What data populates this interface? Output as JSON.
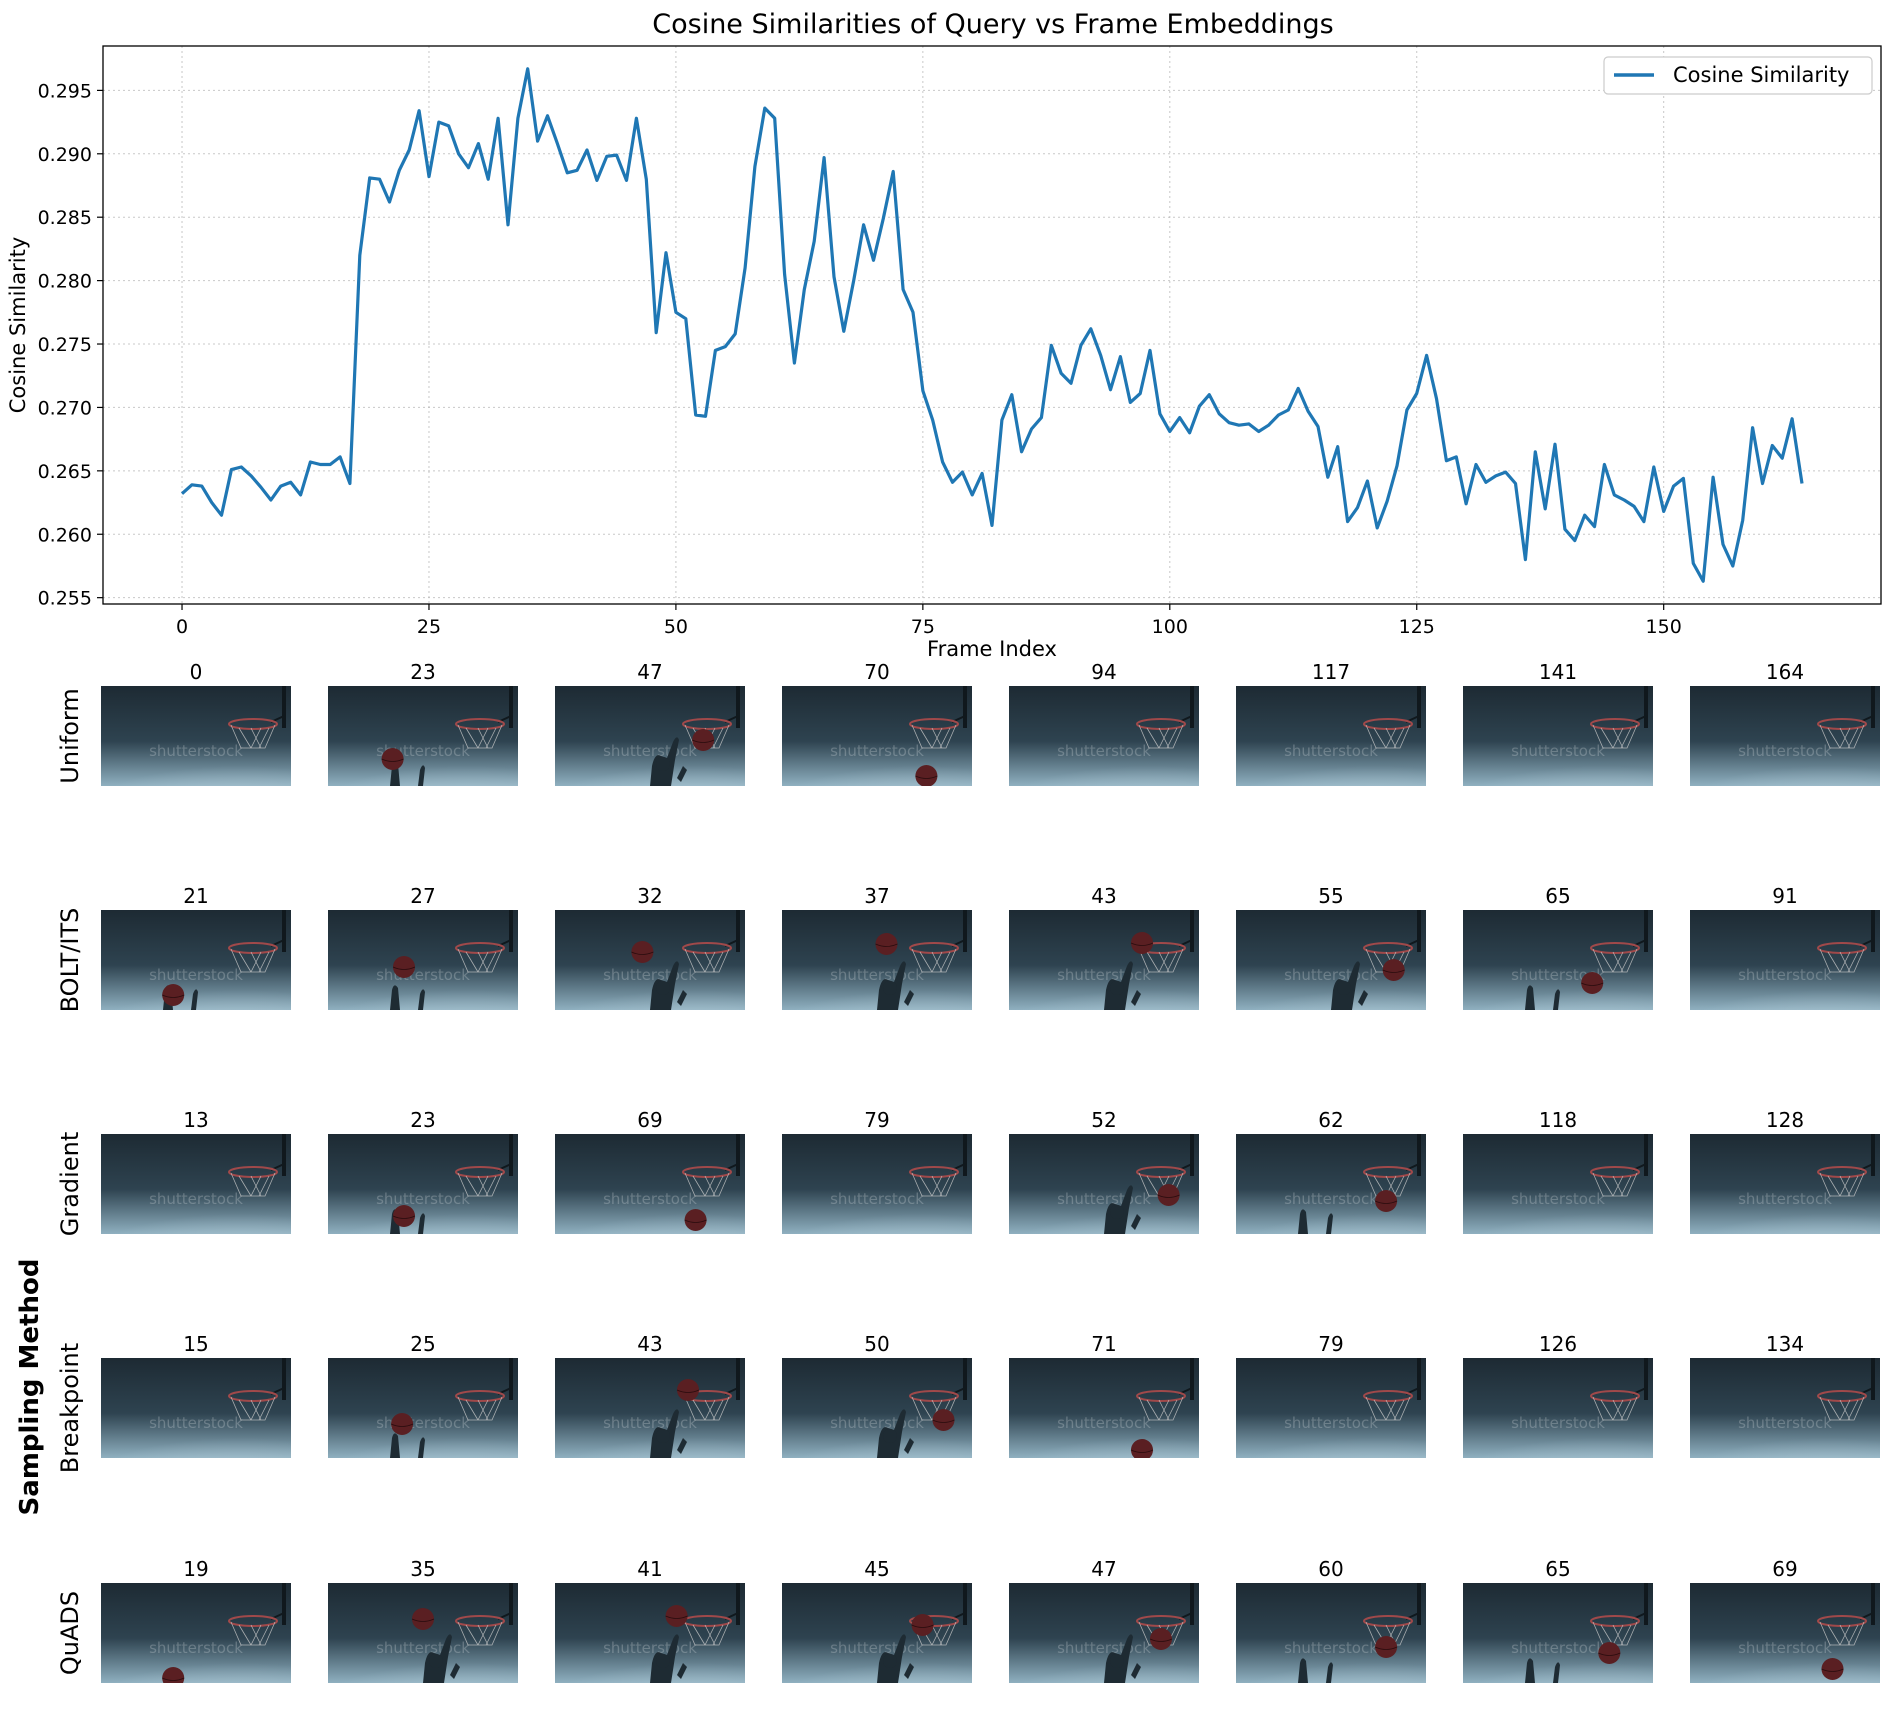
{
  "chart_data": {
    "type": "line",
    "title": "Cosine Similarities of Query vs Frame Embeddings",
    "xlabel": "Frame Index",
    "ylabel": "Cosine Similarity",
    "xlim": [
      -8,
      172
    ],
    "ylim": [
      0.2545,
      0.2985
    ],
    "xticks": [
      0,
      25,
      50,
      75,
      100,
      125,
      150
    ],
    "yticks": [
      0.255,
      0.26,
      0.265,
      0.27,
      0.275,
      0.28,
      0.285,
      0.29,
      0.295
    ],
    "ytick_labels": [
      "0.255",
      "0.260",
      "0.265",
      "0.270",
      "0.275",
      "0.280",
      "0.285",
      "0.290",
      "0.295"
    ],
    "grid": true,
    "legend_position": "top-right",
    "series": [
      {
        "name": "Cosine Similarity",
        "color": "#1f77b4",
        "x_start": 0,
        "values": [
          0.2632,
          0.2639,
          0.2638,
          0.2625,
          0.2615,
          0.2651,
          0.2653,
          0.2646,
          0.2637,
          0.2627,
          0.2638,
          0.2641,
          0.2631,
          0.2657,
          0.2655,
          0.2655,
          0.2661,
          0.264,
          0.282,
          0.2881,
          0.288,
          0.2862,
          0.2887,
          0.2903,
          0.2934,
          0.2882,
          0.2925,
          0.2922,
          0.29,
          0.2889,
          0.2908,
          0.288,
          0.2928,
          0.2844,
          0.2928,
          0.2967,
          0.291,
          0.293,
          0.2908,
          0.2885,
          0.2887,
          0.2903,
          0.2879,
          0.2898,
          0.2899,
          0.2879,
          0.2928,
          0.288,
          0.2759,
          0.2822,
          0.2775,
          0.277,
          0.2694,
          0.2693,
          0.2745,
          0.2748,
          0.2758,
          0.281,
          0.289,
          0.2936,
          0.2928,
          0.2805,
          0.2735,
          0.2793,
          0.2831,
          0.2897,
          0.2803,
          0.276,
          0.28,
          0.2844,
          0.2816,
          0.2849,
          0.2886,
          0.2793,
          0.2775,
          0.2713,
          0.269,
          0.2657,
          0.2641,
          0.2649,
          0.2631,
          0.2648,
          0.2607,
          0.269,
          0.271,
          0.2665,
          0.2683,
          0.2692,
          0.2749,
          0.2727,
          0.2719,
          0.2749,
          0.2762,
          0.2741,
          0.2714,
          0.274,
          0.2704,
          0.2711,
          0.2745,
          0.2695,
          0.2681,
          0.2692,
          0.268,
          0.2701,
          0.271,
          0.2695,
          0.2688,
          0.2686,
          0.2687,
          0.2681,
          0.2686,
          0.2694,
          0.2698,
          0.2715,
          0.2697,
          0.2685,
          0.2645,
          0.2669,
          0.261,
          0.2621,
          0.2642,
          0.2605,
          0.2626,
          0.2654,
          0.2698,
          0.2711,
          0.2741,
          0.2707,
          0.2658,
          0.2661,
          0.2624,
          0.2655,
          0.2641,
          0.2646,
          0.2649,
          0.264,
          0.258,
          0.2665,
          0.262,
          0.2671,
          0.2604,
          0.2595,
          0.2615,
          0.2606,
          0.2655,
          0.2631,
          0.2627,
          0.2622,
          0.261,
          0.2653,
          0.2618,
          0.2638,
          0.2644,
          0.2577,
          0.2563,
          0.2645,
          0.2592,
          0.2575,
          0.2611,
          0.2684,
          0.264,
          0.267,
          0.266,
          0.2691,
          0.264
        ]
      }
    ]
  },
  "grid_figure": {
    "side_label": "Sampling Method",
    "rows": [
      {
        "method": "Uniform",
        "frames": [
          "0",
          "23",
          "47",
          "70",
          "94",
          "117",
          "141",
          "164"
        ],
        "ball": [
          null,
          [
            0.34,
            0.73
          ],
          [
            0.78,
            0.54
          ],
          [
            0.76,
            0.9
          ],
          null,
          null,
          null,
          null
        ],
        "player": [
          0,
          1,
          2,
          0,
          0,
          0,
          0,
          0
        ]
      },
      {
        "method": "BOLT/ITS",
        "frames": [
          "21",
          "27",
          "32",
          "37",
          "43",
          "55",
          "65",
          "91"
        ],
        "ball": [
          [
            0.38,
            0.85
          ],
          [
            0.4,
            0.57
          ],
          [
            0.46,
            0.42
          ],
          [
            0.55,
            0.34
          ],
          [
            0.7,
            0.33
          ],
          [
            0.83,
            0.6
          ],
          [
            0.68,
            0.73
          ],
          null
        ],
        "player": [
          1,
          1,
          2,
          2,
          2,
          2,
          1,
          0
        ]
      },
      {
        "method": "Gradient",
        "frames": [
          "13",
          "23",
          "69",
          "79",
          "52",
          "62",
          "118",
          "128"
        ],
        "ball": [
          null,
          [
            0.4,
            0.82
          ],
          [
            0.74,
            0.86
          ],
          null,
          [
            0.84,
            0.61
          ],
          [
            0.79,
            0.67
          ],
          null,
          null
        ],
        "player": [
          0,
          1,
          0,
          0,
          2,
          1,
          0,
          0
        ]
      },
      {
        "method": "Breakpoint",
        "frames": [
          "15",
          "25",
          "43",
          "50",
          "71",
          "79",
          "126",
          "134"
        ],
        "ball": [
          null,
          [
            0.39,
            0.66
          ],
          [
            0.7,
            0.32
          ],
          [
            0.85,
            0.62
          ],
          [
            0.7,
            0.92
          ],
          null,
          null,
          null
        ],
        "player": [
          0,
          1,
          2,
          2,
          0,
          0,
          0,
          0
        ]
      },
      {
        "method": "QuADS",
        "frames": [
          "19",
          "35",
          "41",
          "45",
          "47",
          "60",
          "65",
          "69"
        ],
        "ball": [
          [
            0.38,
            0.95
          ],
          [
            0.5,
            0.36
          ],
          [
            0.64,
            0.33
          ],
          [
            0.74,
            0.42
          ],
          [
            0.8,
            0.56
          ],
          [
            0.79,
            0.64
          ],
          [
            0.77,
            0.7
          ],
          [
            0.75,
            0.86
          ]
        ],
        "player": [
          0,
          2,
          2,
          2,
          2,
          1,
          1,
          0
        ]
      }
    ],
    "watermark": "shutterstock",
    "colors": {
      "bg_top": "#1d2a33",
      "bg_mid": "#2e4350",
      "smoke": "#8fb0c0",
      "ball": "#5a1f22",
      "rim": "#a0494a",
      "net": "#c8c8c8",
      "player": "#1e2b33"
    }
  }
}
